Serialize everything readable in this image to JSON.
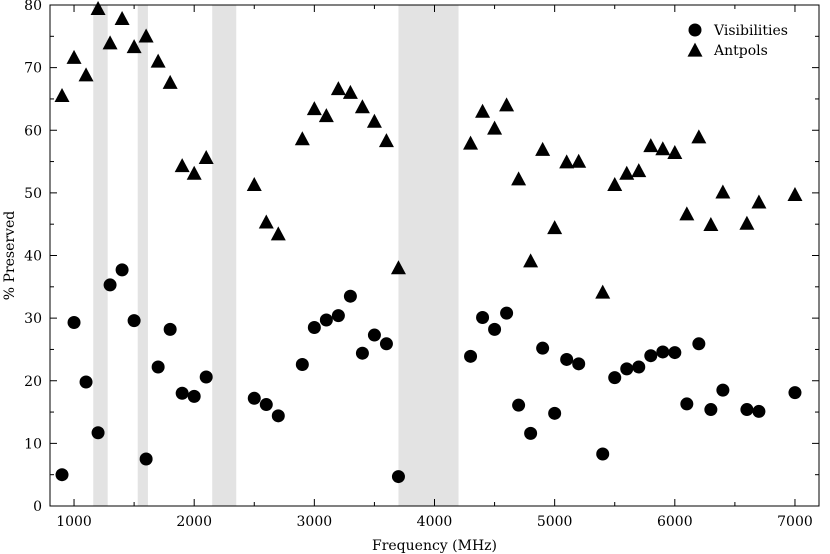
{
  "chart_data": {
    "type": "scatter",
    "title": "",
    "xlabel": "Frequency (MHz)",
    "ylabel": "% Preserved",
    "xlim": [
      800,
      7200
    ],
    "ylim": [
      0,
      80
    ],
    "x_ticks": [
      1000,
      2000,
      3000,
      4000,
      5000,
      6000,
      7000
    ],
    "y_ticks": [
      0,
      10,
      20,
      30,
      40,
      50,
      60,
      70,
      80
    ],
    "grid": false,
    "legend_position": "top-right",
    "shaded_bands": [
      [
        1160,
        1280
      ],
      [
        1530,
        1615
      ],
      [
        2150,
        2350
      ],
      [
        3700,
        4200
      ]
    ],
    "band_color": "#e3e3e3",
    "marker_color": "#000000",
    "series": [
      {
        "name": "Visibilities",
        "marker": "circle",
        "points": [
          [
            900,
            5.0
          ],
          [
            1000,
            29.3
          ],
          [
            1100,
            19.8
          ],
          [
            1200,
            11.7
          ],
          [
            1300,
            35.3
          ],
          [
            1400,
            37.7
          ],
          [
            1500,
            29.6
          ],
          [
            1600,
            7.5
          ],
          [
            1700,
            22.2
          ],
          [
            1800,
            28.2
          ],
          [
            1900,
            18.0
          ],
          [
            2000,
            17.5
          ],
          [
            2100,
            20.6
          ],
          [
            2500,
            17.2
          ],
          [
            2600,
            16.2
          ],
          [
            2700,
            14.4
          ],
          [
            2900,
            22.6
          ],
          [
            3000,
            28.5
          ],
          [
            3100,
            29.7
          ],
          [
            3200,
            30.4
          ],
          [
            3300,
            33.5
          ],
          [
            3400,
            24.4
          ],
          [
            3500,
            27.3
          ],
          [
            3600,
            25.9
          ],
          [
            3700,
            4.7
          ],
          [
            4300,
            23.9
          ],
          [
            4400,
            30.1
          ],
          [
            4500,
            28.2
          ],
          [
            4600,
            30.8
          ],
          [
            4700,
            16.1
          ],
          [
            4800,
            11.6
          ],
          [
            4900,
            25.2
          ],
          [
            5000,
            14.8
          ],
          [
            5100,
            23.4
          ],
          [
            5200,
            22.7
          ],
          [
            5400,
            8.3
          ],
          [
            5500,
            20.5
          ],
          [
            5600,
            21.9
          ],
          [
            5700,
            22.2
          ],
          [
            5800,
            24.0
          ],
          [
            5900,
            24.6
          ],
          [
            6000,
            24.5
          ],
          [
            6100,
            16.3
          ],
          [
            6200,
            25.9
          ],
          [
            6300,
            15.4
          ],
          [
            6400,
            18.5
          ],
          [
            6600,
            15.4
          ],
          [
            6700,
            15.1
          ],
          [
            7000,
            18.1
          ]
        ]
      },
      {
        "name": "Antpols",
        "marker": "triangle",
        "points": [
          [
            900,
            65.4
          ],
          [
            1000,
            71.5
          ],
          [
            1100,
            68.7
          ],
          [
            1200,
            79.3
          ],
          [
            1300,
            73.8
          ],
          [
            1400,
            77.7
          ],
          [
            1500,
            73.2
          ],
          [
            1600,
            74.9
          ],
          [
            1700,
            70.9
          ],
          [
            1800,
            67.5
          ],
          [
            1900,
            54.2
          ],
          [
            2000,
            53.0
          ],
          [
            2100,
            55.5
          ],
          [
            2500,
            51.2
          ],
          [
            2600,
            45.2
          ],
          [
            2700,
            43.3
          ],
          [
            2900,
            58.5
          ],
          [
            3000,
            63.3
          ],
          [
            3100,
            62.2
          ],
          [
            3200,
            66.5
          ],
          [
            3300,
            65.9
          ],
          [
            3400,
            63.6
          ],
          [
            3500,
            61.3
          ],
          [
            3600,
            58.2
          ],
          [
            3700,
            37.9
          ],
          [
            4300,
            57.8
          ],
          [
            4400,
            62.9
          ],
          [
            4500,
            60.2
          ],
          [
            4600,
            63.9
          ],
          [
            4700,
            52.1
          ],
          [
            4800,
            39.0
          ],
          [
            4900,
            56.8
          ],
          [
            5000,
            44.3
          ],
          [
            5100,
            54.8
          ],
          [
            5200,
            54.9
          ],
          [
            5400,
            34.0
          ],
          [
            5500,
            51.2
          ],
          [
            5600,
            53.0
          ],
          [
            5700,
            53.4
          ],
          [
            5800,
            57.4
          ],
          [
            5900,
            56.9
          ],
          [
            6000,
            56.3
          ],
          [
            6100,
            46.5
          ],
          [
            6200,
            58.8
          ],
          [
            6300,
            44.8
          ],
          [
            6400,
            50.0
          ],
          [
            6600,
            45.0
          ],
          [
            6700,
            48.4
          ],
          [
            7000,
            49.6
          ]
        ]
      }
    ]
  }
}
